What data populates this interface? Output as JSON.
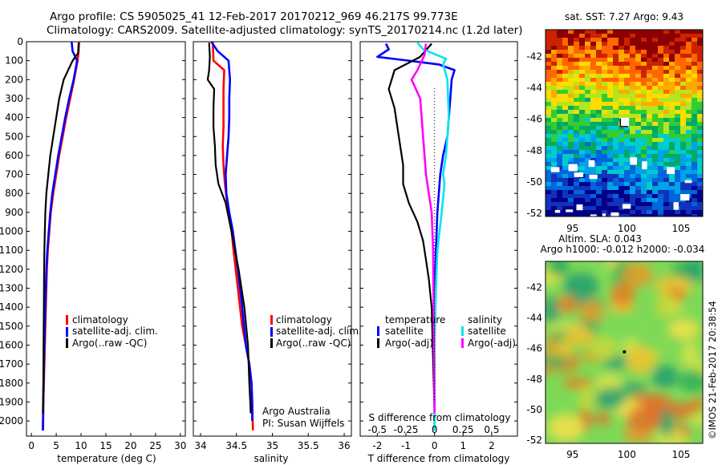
{
  "header": {
    "line1": "Argo profile: CS 5905025_41 12-Feb-2017 20170212_969 46.217S 99.773E",
    "line2": "Climatology: CARS2009. Satellite-adjusted climatology: synTS_20170214.nc (1.2d later)"
  },
  "colors": {
    "climatology": "#ff0000",
    "satellite": "#0000ff",
    "argo": "#000000",
    "sat_salinity": "#00e5ee",
    "argo_salinity": "#ff00ff"
  },
  "chart_data": [
    {
      "type": "line",
      "xlabel": "temperature (deg C)",
      "ylabel": "",
      "xlim": [
        -1,
        31
      ],
      "ylim": [
        2080,
        0
      ],
      "xticks": [
        "0",
        "5",
        "10",
        "15",
        "20",
        "25",
        "30"
      ],
      "xtick_values": [
        0,
        5,
        10,
        15,
        20,
        25,
        30
      ],
      "yticks": [
        "0",
        "100",
        "200",
        "300",
        "400",
        "500",
        "600",
        "700",
        "800",
        "900",
        "1000",
        "1100",
        "1200",
        "1300",
        "1400",
        "1500",
        "1600",
        "1700",
        "1800",
        "1900",
        "2000"
      ],
      "legend": [
        "climatology",
        "satellite-adj. clim.",
        "Argo(..raw -QC)"
      ],
      "series": [
        {
          "name": "climatology",
          "color": "#ff0000",
          "x": [
            9.6,
            9.5,
            9.3,
            8.6,
            7.8,
            7.0,
            6.3,
            5.6,
            5.0,
            4.4,
            3.9,
            3.6,
            3.3,
            3.1,
            2.9,
            2.8,
            2.7,
            2.6,
            2.5,
            2.4,
            2.35
          ],
          "y": [
            0,
            50,
            100,
            200,
            300,
            400,
            500,
            600,
            700,
            800,
            900,
            1000,
            1100,
            1200,
            1400,
            1500,
            1600,
            1700,
            1800,
            1900,
            2050
          ]
        },
        {
          "name": "satellite-adj. clim.",
          "color": "#0000ff",
          "x": [
            8.1,
            8.3,
            9.2,
            8.5,
            7.6,
            6.8,
            6.1,
            5.4,
            4.8,
            4.2,
            3.8,
            3.5,
            3.2,
            3.0,
            2.8,
            2.7,
            2.6,
            2.5,
            2.45,
            2.4,
            2.3
          ],
          "y": [
            0,
            50,
            100,
            200,
            300,
            400,
            500,
            600,
            700,
            800,
            900,
            1000,
            1100,
            1200,
            1400,
            1500,
            1600,
            1700,
            1800,
            1900,
            2050
          ]
        },
        {
          "name": "Argo(..raw -QC)",
          "color": "#000000",
          "x": [
            9.5,
            9.4,
            8.3,
            6.5,
            5.6,
            5.0,
            4.4,
            3.8,
            3.4,
            3.0,
            2.8,
            2.7,
            2.6,
            2.55,
            2.5,
            2.45,
            2.4,
            2.35,
            2.3
          ],
          "y": [
            5,
            60,
            100,
            200,
            300,
            400,
            500,
            600,
            700,
            800,
            900,
            1000,
            1100,
            1200,
            1400,
            1600,
            1800,
            1900,
            1960
          ]
        }
      ]
    },
    {
      "type": "line",
      "xlabel": "salinity",
      "xlim": [
        33.9,
        36.1
      ],
      "ylim": [
        2080,
        0
      ],
      "xticks": [
        "34",
        "34.5",
        "35",
        "35.5",
        "36"
      ],
      "xtick_values": [
        34,
        34.5,
        35,
        35.5,
        36
      ],
      "legend": [
        "climatology",
        "satellite-adj. clim.",
        "Argo(..raw -QC)"
      ],
      "annotation": [
        "Argo Australia",
        "PI: Susan Wijffels"
      ],
      "series": [
        {
          "name": "climatology",
          "color": "#ff0000",
          "x": [
            34.17,
            34.18,
            34.33,
            34.32,
            34.32,
            34.32,
            34.31,
            34.32,
            34.34,
            34.37,
            34.42,
            34.46,
            34.52,
            34.58,
            34.63,
            34.68,
            34.71,
            34.72,
            34.73
          ],
          "y": [
            0,
            100,
            150,
            250,
            350,
            450,
            550,
            650,
            750,
            850,
            950,
            1100,
            1300,
            1500,
            1600,
            1700,
            1800,
            1900,
            2050
          ]
        },
        {
          "name": "satellite-adj. clim.",
          "color": "#0000ff",
          "x": [
            34.15,
            34.24,
            34.39,
            34.41,
            34.4,
            34.4,
            34.39,
            34.37,
            34.35,
            34.36,
            34.4,
            34.45,
            34.52,
            34.58,
            34.63,
            34.68,
            34.71,
            34.72,
            34.72
          ],
          "y": [
            0,
            50,
            100,
            200,
            300,
            400,
            500,
            600,
            700,
            800,
            900,
            1000,
            1200,
            1400,
            1600,
            1700,
            1800,
            1900,
            2000
          ]
        },
        {
          "name": "Argo(..raw -QC)",
          "color": "#000000",
          "x": [
            34.12,
            34.13,
            34.12,
            34.1,
            34.19,
            34.18,
            34.18,
            34.2,
            34.21,
            34.25,
            34.35,
            34.43,
            34.53,
            34.61,
            34.66,
            34.68,
            34.7
          ],
          "y": [
            5,
            80,
            150,
            200,
            250,
            350,
            450,
            550,
            650,
            750,
            850,
            1000,
            1200,
            1400,
            1600,
            1800,
            1960
          ]
        }
      ]
    },
    {
      "type": "line",
      "xlabel": "T difference from climatology",
      "xlabel_top": "S difference from climatology",
      "xlim": [
        -2.6,
        2.9
      ],
      "ylim": [
        2080,
        0
      ],
      "xticks": [
        "-2",
        "-1",
        "0",
        "1",
        "2"
      ],
      "xtick_values": [
        -2,
        -1,
        0,
        1,
        2
      ],
      "xticks_top": [
        "-0.5",
        "-0.25",
        "0",
        "0.25",
        "0.5"
      ],
      "legend": [
        "satellite",
        "Argo(-adj)",
        "satellite",
        "Argo(-adj)"
      ],
      "legend_headers": [
        "temperature",
        "salinity"
      ],
      "series": [
        {
          "name": "satellite",
          "group": "temperature",
          "color": "#0000ff",
          "x": [
            -1.7,
            -1.6,
            -2.0,
            -0.9,
            0.15,
            0.7,
            0.6,
            0.55,
            0.5,
            0.45,
            0.3,
            0.2,
            0.15,
            0.1,
            0.05,
            0.0,
            0.0
          ],
          "y": [
            10,
            40,
            80,
            100,
            120,
            150,
            200,
            300,
            400,
            500,
            600,
            700,
            800,
            900,
            1100,
            1400,
            2050
          ]
        },
        {
          "name": "Argo(-adj)",
          "group": "temperature",
          "color": "#000000",
          "x": [
            -0.1,
            -0.5,
            -1.4,
            -1.6,
            -1.4,
            -1.3,
            -1.2,
            -1.1,
            -1.1,
            -0.9,
            -0.6,
            -0.4,
            -0.3,
            -0.2,
            -0.1,
            0.0
          ],
          "y": [
            10,
            80,
            150,
            250,
            350,
            450,
            550,
            650,
            750,
            850,
            950,
            1050,
            1150,
            1250,
            1400,
            1960
          ]
        },
        {
          "name": "satellite",
          "group": "salinity",
          "color": "#00e5ee",
          "x": [
            -0.6,
            -0.4,
            0.4,
            0.3,
            0.45,
            0.5,
            0.4,
            0.3,
            0.35,
            0.25,
            0.1,
            0.05,
            0.0,
            0.0
          ],
          "y": [
            5,
            40,
            90,
            120,
            200,
            400,
            600,
            700,
            750,
            900,
            1100,
            1300,
            1600,
            2050
          ]
        },
        {
          "name": "Argo(-adj)",
          "group": "salinity",
          "color": "#ff00ff",
          "x": [
            -0.3,
            -0.35,
            -0.6,
            -0.8,
            -0.5,
            -0.45,
            -0.4,
            -0.35,
            -0.3,
            -0.2,
            -0.1,
            -0.05,
            0.0
          ],
          "y": [
            10,
            70,
            150,
            200,
            300,
            400,
            500,
            600,
            700,
            800,
            900,
            1100,
            1960
          ]
        }
      ]
    },
    {
      "type": "heatmap",
      "title": "sat. SST: 7.27 Argo: 9.43",
      "xlim": [
        92.5,
        107
      ],
      "ylim": [
        -52.2,
        -40.3
      ],
      "xticks": [
        "95",
        "100",
        "105"
      ],
      "xtick_values": [
        95,
        100,
        105
      ],
      "yticks": [
        "-42",
        "-44",
        "-46",
        "-48",
        "-50",
        "-52"
      ],
      "ytick_values": [
        -42,
        -44,
        -46,
        -48,
        -50,
        -52
      ],
      "marker": {
        "lon": 99.773,
        "lat": -46.217
      }
    },
    {
      "type": "heatmap",
      "title": "Altim. SLA: 0.043",
      "subtitle": "Argo h1000: -0.012 h2000: -0.034",
      "xlim": [
        92.5,
        107
      ],
      "ylim": [
        -52.2,
        -40.3
      ],
      "xticks": [
        "95",
        "100",
        "105"
      ],
      "xtick_values": [
        95,
        100,
        105
      ],
      "yticks": [
        "-42",
        "-44",
        "-46",
        "-48",
        "-50",
        "-52"
      ],
      "ytick_values": [
        -42,
        -44,
        -46,
        -48,
        -50,
        -52
      ],
      "marker": {
        "lon": 99.773,
        "lat": -46.217
      }
    }
  ],
  "footer": {
    "stamp": "©IMOS 21-Feb-2017 20:38:54"
  }
}
